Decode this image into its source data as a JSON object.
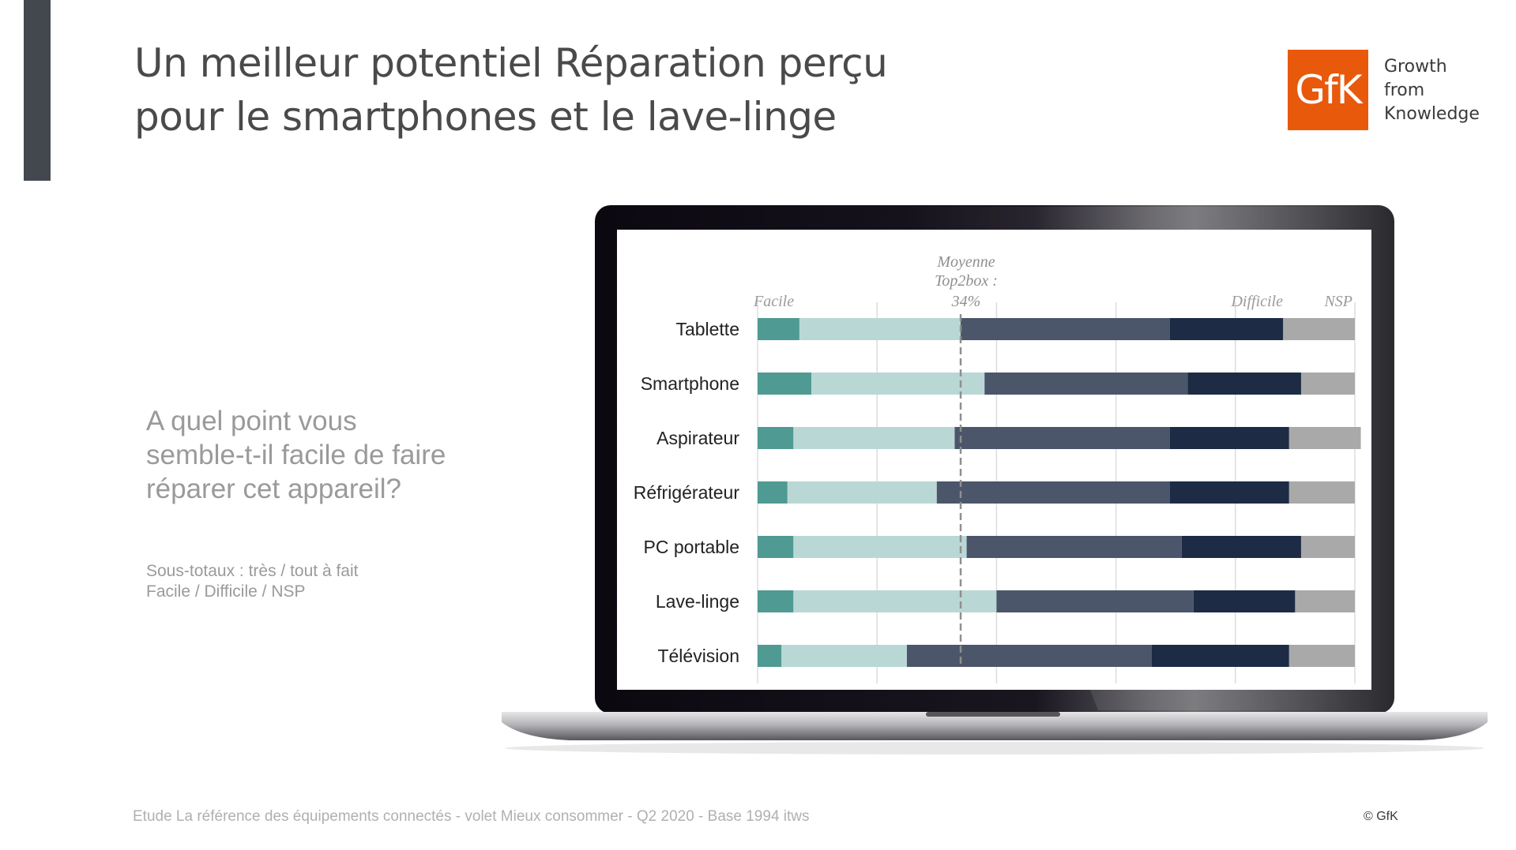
{
  "title": {
    "line1": "Un meilleur potentiel Réparation perçu",
    "line2": "pour le smartphones et le lave-linge"
  },
  "logo": {
    "mark": "GfK",
    "tagline": [
      "Growth",
      "from",
      "Knowledge"
    ],
    "colors": {
      "brand": "#e8590c"
    }
  },
  "question": {
    "lines": [
      "A quel point vous",
      "semble-t-il facile de faire",
      "réparer cet appareil?"
    ]
  },
  "subtotals": {
    "line1": "Sous-totaux : très / tout à fait",
    "line2": "Facile / Difficile / NSP"
  },
  "footer": {
    "source": "Etude La référence des équipements connectés - volet Mieux consommer - Q2 2020 - Base 1994 itws",
    "copyright": "© GfK"
  },
  "chart_data": {
    "type": "bar",
    "orientation": "horizontal",
    "stacked": true,
    "categories": [
      "Tablette",
      "Smartphone",
      "Aspirateur",
      "Réfrigérateur",
      "PC portable",
      "Lave-linge",
      "Télévision"
    ],
    "series": [
      {
        "color": "#4f9a93",
        "values": [
          7,
          9,
          6,
          5,
          6,
          6,
          4
        ]
      },
      {
        "color": "#b9d8d5",
        "values": [
          27,
          29,
          27,
          25,
          29,
          34,
          21
        ]
      },
      {
        "color": "#4b566a",
        "values": [
          35,
          34,
          36,
          39,
          36,
          33,
          41
        ]
      },
      {
        "color": "#1d2b45",
        "values": [
          19,
          19,
          20,
          20,
          20,
          17,
          23
        ]
      },
      {
        "color": "#a9a9a9",
        "values": [
          12,
          9,
          12,
          11,
          9,
          10,
          11
        ]
      }
    ],
    "labels": {
      "facile": "Facile",
      "difficile": "Difficile",
      "nsp": "NSP"
    },
    "average": {
      "lines": [
        "Moyenne",
        "Top2box :",
        "34%"
      ],
      "value": 34
    },
    "xlim": [
      0,
      100
    ],
    "grid": true
  }
}
